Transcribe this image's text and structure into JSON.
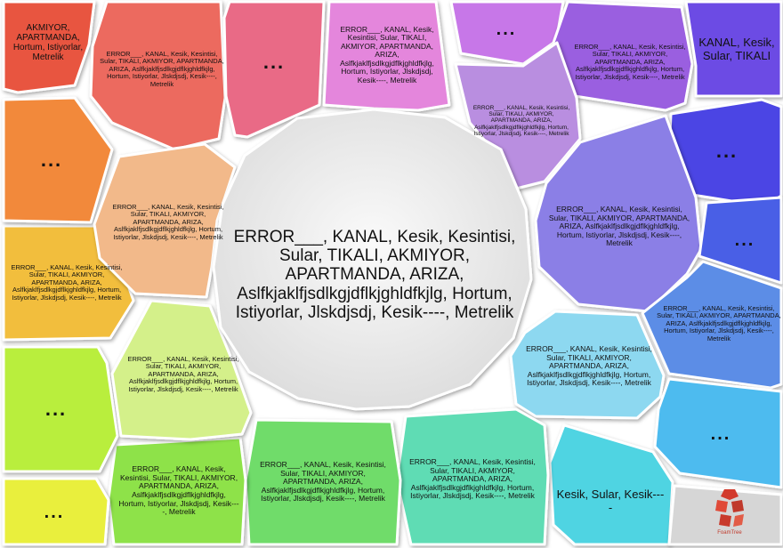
{
  "center": {
    "text": "ERROR___, KANAL, Kesik, Kesintisi, Sular, TIKALI, AKMIYOR, APARTMANDA, ARIZA, Aslfkjaklfjsdlkgjdflkjghldfkjlg, Hortum, Istiyorlar, Jlskdjsdj, Kesik----, Metrelik",
    "color": "#eeeeee"
  },
  "cells": [
    {
      "id": "red-outer-a",
      "text": "AKMIYOR, APARTMANDA, Hortum, Istiyorlar, Metrelik",
      "color": "#e8553f"
    },
    {
      "id": "red-outer-b",
      "text": "ERROR___, KANAL, Kesik, Kesintisi, Sular, TIKALI, AKMIYOR, APARTMANDA, ARIZA, Aslfkjaklfjsdlkgjdflkjghldfkjlg, Hortum, Istiyorlar, Jlskdjsdj, Kesik----, Metrelik",
      "color": "#ec6a5e"
    },
    {
      "id": "pink-outer",
      "text": "...",
      "color": "#e96a86"
    },
    {
      "id": "magenta-outer",
      "text": "ERROR___, KANAL, Kesik, Kesintisi, Sular, TIKALI, AKMIYOR, APARTMANDA, ARIZA, Aslfkjaklfjsdlkgjdflkjghldfkjlg, Hortum, Istiyorlar, Jlskdjsdj, Kesik----, Metrelik",
      "color": "#e486dc"
    },
    {
      "id": "violet-outer-a",
      "text": "...",
      "color": "#c777e8"
    },
    {
      "id": "violet-outer-b",
      "text": "ERROR___, KANAL, Kesik, Kesintisi, Sular, TIKALI, AKMIYOR, APARTMANDA, ARIZA, Aslfkjaklfjsdlkgjdflkjghldfkjlg, Hortum, Istiyorlar, Jlskdjsdj, Kesik----, Metrelik",
      "color": "#9a5fe0"
    },
    {
      "id": "indigo-outer",
      "text": "KANAL, Kesik, Sular, TIKALI",
      "color": "#6c4be4"
    },
    {
      "id": "purple-inner",
      "text": "ERROR___, KANAL, Kesik, Kesintisi, Sular, TIKALI, AKMIYOR, APARTMANDA, ARIZA, Aslfkjaklfjsdlkgjdflkjghldfkjlg, Hortum, Istiyorlar, Jlskdjsdj, Kesik----, Metrelik",
      "color": "#b98ee0"
    },
    {
      "id": "blue-outer-a",
      "text": "...",
      "color": "#4c45e4"
    },
    {
      "id": "blue-inner",
      "text": "ERROR___, KANAL, Kesik, Kesintisi, Sular, TIKALI, AKMIYOR, APARTMANDA, ARIZA, Aslfkjaklfjsdlkgjdflkjghldfkjlg, Hortum, Istiyorlar, Jlskdjsdj, Kesik----, Metrelik",
      "color": "#8b7fe6"
    },
    {
      "id": "blue-outer-b",
      "text": "...",
      "color": "#4a5fe6"
    },
    {
      "id": "blue-outer-c",
      "text": "ERROR___, KANAL, Kesik, Kesintisi, Sular, TIKALI, AKMIYOR, APARTMANDA, ARIZA, Aslfkjaklfjsdlkgjdflkjghldfkjlg, Hortum, Istiyorlar, Jlskdjsdj, Kesik----, Metrelik",
      "color": "#5b8de6"
    },
    {
      "id": "cyan-inner",
      "text": "ERROR___, KANAL, Kesik, Kesintisi, Sular, TIKALI, AKMIYOR, APARTMANDA, ARIZA, Aslfkjaklfjsdlkgjdflkjghldfkjlg, Hortum, Istiyorlar, Jlskdjsdj, Kesik----, Metrelik",
      "color": "#8dd8f0"
    },
    {
      "id": "cyan-outer",
      "text": "...",
      "color": "#4dbbef"
    },
    {
      "id": "aqua-outer",
      "text": "Kesik, Sular, Kesik----",
      "color": "#4fd4e2"
    },
    {
      "id": "teal-outer",
      "text": "ERROR___, KANAL, Kesik, Kesintisi, Sular, TIKALI, AKMIYOR, APARTMANDA, ARIZA, Aslfkjaklfjsdlkgjdflkjghldfkjlg, Hortum, Istiyorlar, Jlskdjsdj, Kesik----, Metrelik",
      "color": "#5fdcb4"
    },
    {
      "id": "green-outer-a",
      "text": "ERROR___, KANAL, Kesik, Kesintisi, Sular, TIKALI, AKMIYOR, APARTMANDA, ARIZA, Aslfkjaklfjsdlkgjdflkjghldfkjlg, Hortum, Istiyorlar, Jlskdjsdj, Kesik----, Metrelik",
      "color": "#6fdc6a"
    },
    {
      "id": "green-outer-b",
      "text": "ERROR___, KANAL, Kesik, Kesintisi, Sular, TIKALI, AKMIYOR, APARTMANDA, ARIZA, Aslfkjaklfjsdlkgjdflkjghldfkjlg, Hortum, Istiyorlar, Jlskdjsdj, Kesik----, Metrelik",
      "color": "#8ee24a"
    },
    {
      "id": "lime-outer",
      "text": "...",
      "color": "#b9ee3c"
    },
    {
      "id": "lime-inner",
      "text": "ERROR___, KANAL, Kesik, Kesintisi, Sular, TIKALI, AKMIYOR, APARTMANDA, ARIZA, Aslfkjaklfjsdlkgjdflkjghldfkjlg, Hortum, Istiyorlar, Jlskdjsdj, Kesik----, Metrelik",
      "color": "#d4f08a"
    },
    {
      "id": "yellow-outer",
      "text": "...",
      "color": "#e9ef3e"
    },
    {
      "id": "amber-outer",
      "text": "ERROR___, KANAL, Kesik, Kesintisi, Sular, TIKALI, AKMIYOR, APARTMANDA, ARIZA, Aslfkjaklfjsdlkgjdflkjghldfkjlg, Hortum, Istiyorlar, Jlskdjsdj, Kesik----, Metrelik",
      "color": "#f2be3e"
    },
    {
      "id": "orange-outer",
      "text": "...",
      "color": "#f2893a"
    },
    {
      "id": "peach-inner",
      "text": "ERROR___, KANAL, Kesik, Kesintisi, Sular, TIKALI, AKMIYOR, APARTMANDA, ARIZA, Aslfkjaklfjsdlkgjdflkjghldfkjlg, Hortum, Istiyorlar, Jlskdjsdj, Kesik----, Metrelik",
      "color": "#f2b98a"
    },
    {
      "id": "corner-grey",
      "text": "",
      "color": "#d6d6d6"
    }
  ],
  "logo": {
    "icon": "foamtree-logo-icon",
    "caption": "FoamTree",
    "color": "#c0392b"
  }
}
